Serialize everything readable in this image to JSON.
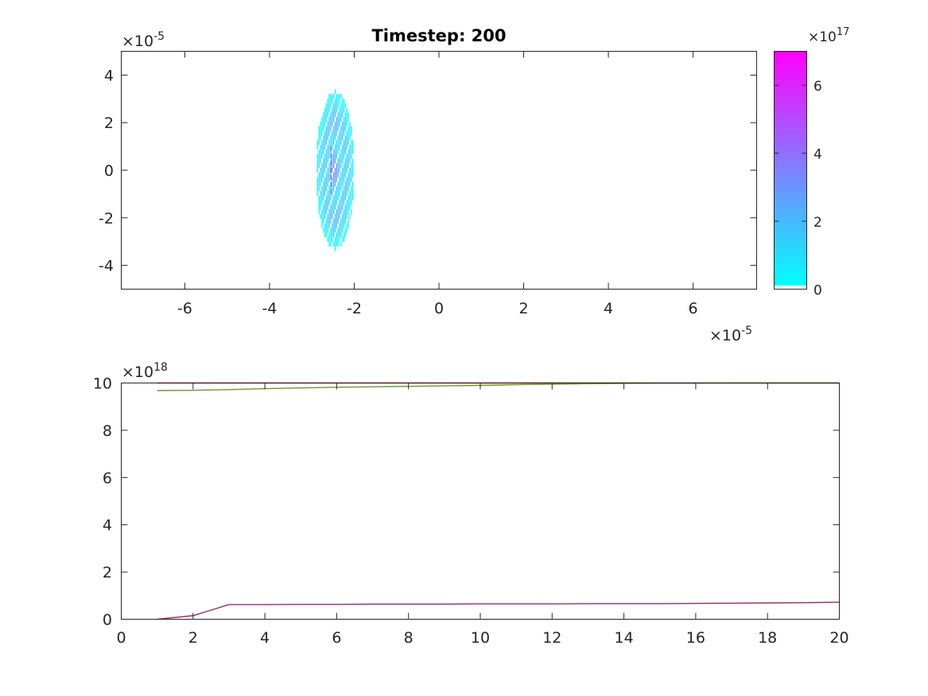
{
  "colors": {
    "axis": "#262626",
    "cmap_low": "#00ffff",
    "cmap_high": "#ff00ff",
    "line_red": "#ff0000",
    "line_green": "#6a9a2a",
    "line_purple": "#9b2c73"
  },
  "chart_data": [
    {
      "type": "heatmap",
      "title": "Timestep: 200",
      "xlabel": "",
      "ylabel": "",
      "x_exponent_label": "×10",
      "x_exponent": "-5",
      "y_exponent_label": "×10",
      "y_exponent": "-5",
      "xlim": [
        -7.5,
        7.5
      ],
      "ylim": [
        -5,
        5
      ],
      "xticks": [
        -6,
        -4,
        -2,
        0,
        2,
        4,
        6
      ],
      "yticks": [
        -4,
        -2,
        0,
        2,
        4
      ],
      "xtick_labels": [
        "-6",
        "-4",
        "-2",
        "0",
        "2",
        "4",
        "6"
      ],
      "ytick_labels": [
        "-4",
        "-2",
        "0",
        "2",
        "4"
      ],
      "colormap": "cool",
      "blob": {
        "x_center": -2.45,
        "x_halfwidth": 0.45,
        "y_halfheight": 3.3,
        "peak": 7e+17
      },
      "colorbar": {
        "exponent_label": "×10",
        "exponent": "17",
        "lim": [
          0,
          7
        ],
        "ticks": [
          0,
          2,
          4,
          6
        ],
        "tick_labels": [
          "0",
          "2",
          "4",
          "6"
        ]
      }
    },
    {
      "type": "line",
      "title": "",
      "xlabel": "",
      "ylabel": "",
      "y_exponent_label": "×10",
      "y_exponent": "18",
      "xlim": [
        0,
        20
      ],
      "ylim": [
        0,
        10
      ],
      "xticks": [
        0,
        2,
        4,
        6,
        8,
        10,
        12,
        14,
        16,
        18,
        20
      ],
      "yticks": [
        0,
        2,
        4,
        6,
        8,
        10
      ],
      "xtick_labels": [
        "0",
        "2",
        "4",
        "6",
        "8",
        "10",
        "12",
        "14",
        "16",
        "18",
        "20"
      ],
      "ytick_labels": [
        "0",
        "2",
        "4",
        "6",
        "8",
        "10"
      ],
      "series": [
        {
          "color": "#ff0000",
          "x": [
            1,
            20
          ],
          "y": [
            10.0,
            10.0
          ]
        },
        {
          "color": "#6a9a2a",
          "x": [
            1,
            2,
            3,
            4,
            5,
            6,
            7,
            8,
            9,
            10,
            11,
            12,
            13,
            14,
            15,
            16,
            17,
            18,
            19,
            20
          ],
          "y": [
            9.68,
            9.69,
            9.72,
            9.76,
            9.79,
            9.82,
            9.84,
            9.86,
            9.88,
            9.9,
            9.93,
            9.95,
            9.97,
            9.98,
            9.99,
            9.99,
            10.0,
            10.0,
            10.0,
            10.0
          ]
        },
        {
          "color": "#9b2c73",
          "x": [
            1,
            2,
            3,
            4,
            5,
            6,
            7,
            8,
            9,
            10,
            11,
            12,
            13,
            14,
            15,
            16,
            17,
            18,
            19,
            20
          ],
          "y": [
            0.0,
            0.15,
            0.62,
            0.62,
            0.63,
            0.63,
            0.64,
            0.64,
            0.64,
            0.65,
            0.65,
            0.65,
            0.66,
            0.66,
            0.66,
            0.67,
            0.68,
            0.69,
            0.7,
            0.72
          ]
        }
      ]
    }
  ]
}
